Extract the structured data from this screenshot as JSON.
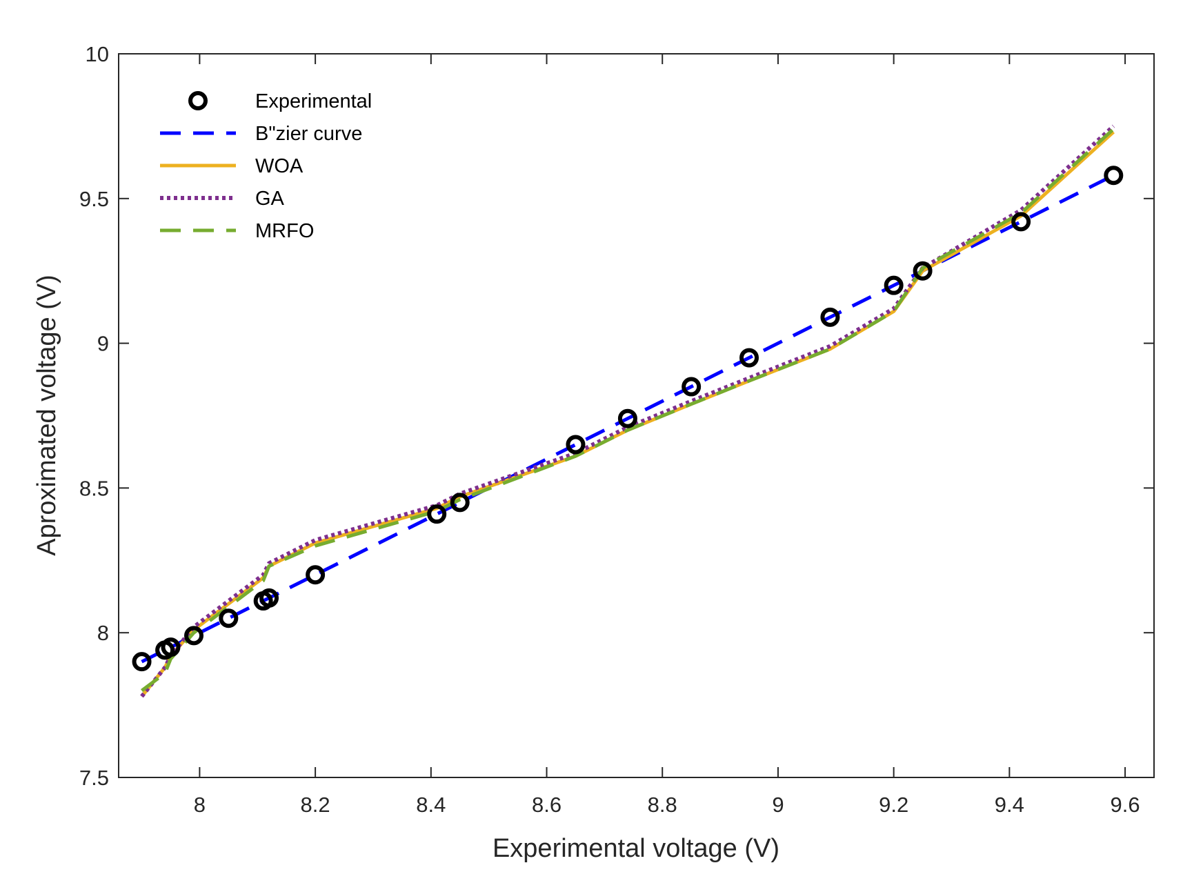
{
  "chart_data": {
    "type": "line",
    "title": "",
    "xlabel": "Experimental voltage (V)",
    "ylabel": "Aproximated voltage (V)",
    "xlim": [
      7.86,
      9.65
    ],
    "ylim": [
      7.5,
      10
    ],
    "xticks": [
      8,
      8.2,
      8.4,
      8.6,
      8.8,
      9,
      9.2,
      9.4,
      9.6
    ],
    "xtick_labels": [
      "8",
      "8.2",
      "8.4",
      "8.6",
      "8.8",
      "9",
      "9.2",
      "9.4",
      "9.6"
    ],
    "yticks": [
      7.5,
      8,
      8.5,
      9,
      9.5,
      10
    ],
    "ytick_labels": [
      "7.5",
      "8",
      "8.5",
      "9",
      "9.5",
      "10"
    ],
    "grid": false,
    "legend_position": "top-left",
    "series": [
      {
        "name": "Experimental",
        "style": "markers",
        "marker": "circle",
        "color": "#000000",
        "x": [
          7.9,
          7.94,
          7.95,
          7.99,
          8.05,
          8.11,
          8.12,
          8.2,
          8.41,
          8.45,
          8.65,
          8.74,
          8.85,
          8.95,
          9.09,
          9.2,
          9.25,
          9.42,
          9.58
        ],
        "y": [
          7.9,
          7.94,
          7.95,
          7.99,
          8.05,
          8.11,
          8.12,
          8.2,
          8.41,
          8.45,
          8.65,
          8.74,
          8.85,
          8.95,
          9.09,
          9.2,
          9.25,
          9.42,
          9.58
        ]
      },
      {
        "name": "B\"zier curve",
        "style": "dashed",
        "color": "#0000ff",
        "x": [
          7.9,
          7.94,
          7.95,
          7.99,
          8.05,
          8.11,
          8.12,
          8.2,
          8.41,
          8.45,
          8.65,
          8.74,
          8.85,
          8.95,
          9.09,
          9.2,
          9.25,
          9.42,
          9.58
        ],
        "y": [
          7.9,
          7.94,
          7.95,
          7.99,
          8.05,
          8.11,
          8.12,
          8.2,
          8.41,
          8.45,
          8.65,
          8.74,
          8.85,
          8.95,
          9.09,
          9.2,
          9.25,
          9.42,
          9.58
        ]
      },
      {
        "name": "WOA",
        "style": "solid",
        "color": "#edb120",
        "x": [
          7.9,
          7.94,
          7.95,
          7.99,
          8.05,
          8.11,
          8.12,
          8.2,
          8.41,
          8.45,
          8.65,
          8.74,
          8.85,
          8.95,
          9.09,
          9.2,
          9.25,
          9.42,
          9.58
        ],
        "y": [
          7.78,
          7.88,
          7.92,
          8.01,
          8.1,
          8.19,
          8.23,
          8.31,
          8.43,
          8.47,
          8.61,
          8.7,
          8.79,
          8.87,
          8.98,
          9.11,
          9.25,
          9.44,
          9.73
        ]
      },
      {
        "name": "GA",
        "style": "dotted",
        "color": "#7e2f8e",
        "x": [
          7.9,
          7.94,
          7.95,
          7.99,
          8.05,
          8.11,
          8.12,
          8.2,
          8.41,
          8.45,
          8.65,
          8.74,
          8.85,
          8.95,
          9.09,
          9.2,
          9.25,
          9.42,
          9.58
        ],
        "y": [
          7.78,
          7.88,
          7.92,
          8.02,
          8.11,
          8.2,
          8.24,
          8.32,
          8.44,
          8.48,
          8.62,
          8.71,
          8.8,
          8.88,
          8.99,
          9.12,
          9.26,
          9.46,
          9.75
        ]
      },
      {
        "name": "MRFO",
        "style": "dashed",
        "color": "#77ac30",
        "x": [
          7.9,
          7.94,
          7.95,
          7.99,
          8.05,
          8.11,
          8.12,
          8.2,
          8.41,
          8.45,
          8.65,
          8.74,
          8.85,
          8.95,
          9.09,
          9.2,
          9.25,
          9.42,
          9.58
        ],
        "y": [
          7.8,
          7.86,
          7.91,
          8.0,
          8.09,
          8.18,
          8.23,
          8.3,
          8.42,
          8.46,
          8.61,
          8.7,
          8.79,
          8.87,
          8.98,
          9.11,
          9.26,
          9.45,
          9.74
        ]
      }
    ]
  }
}
